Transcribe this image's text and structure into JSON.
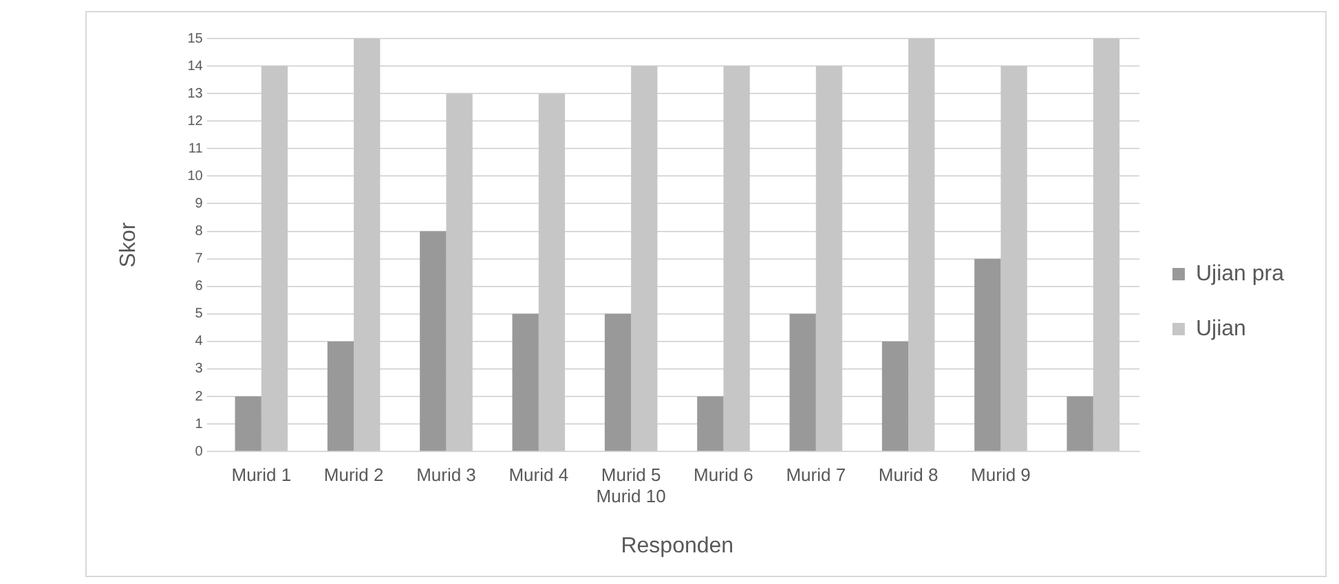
{
  "chart_data": {
    "type": "bar",
    "xlabel": "Responden",
    "ylabel": "Skor",
    "categories": [
      "Murid 1",
      "Murid 2",
      "Murid 3",
      "Murid 4",
      "Murid 5\nMurid 10",
      "Murid 6",
      "Murid 7",
      "Murid 8",
      "Murid 9",
      null
    ],
    "series": [
      {
        "name": "Ujian pra",
        "color": "#999999",
        "values": [
          2,
          4,
          8,
          5,
          5,
          2,
          5,
          4,
          7,
          2
        ]
      },
      {
        "name": "Ujian",
        "color": "#c6c6c6",
        "values": [
          14,
          15,
          13,
          13,
          14,
          14,
          14,
          15,
          14,
          15
        ]
      }
    ],
    "ylim": [
      0,
      15
    ],
    "yticks": [
      0,
      1,
      2,
      3,
      4,
      5,
      6,
      7,
      8,
      9,
      10,
      11,
      12,
      13,
      14,
      15
    ],
    "grid": "y",
    "legend": "right"
  }
}
